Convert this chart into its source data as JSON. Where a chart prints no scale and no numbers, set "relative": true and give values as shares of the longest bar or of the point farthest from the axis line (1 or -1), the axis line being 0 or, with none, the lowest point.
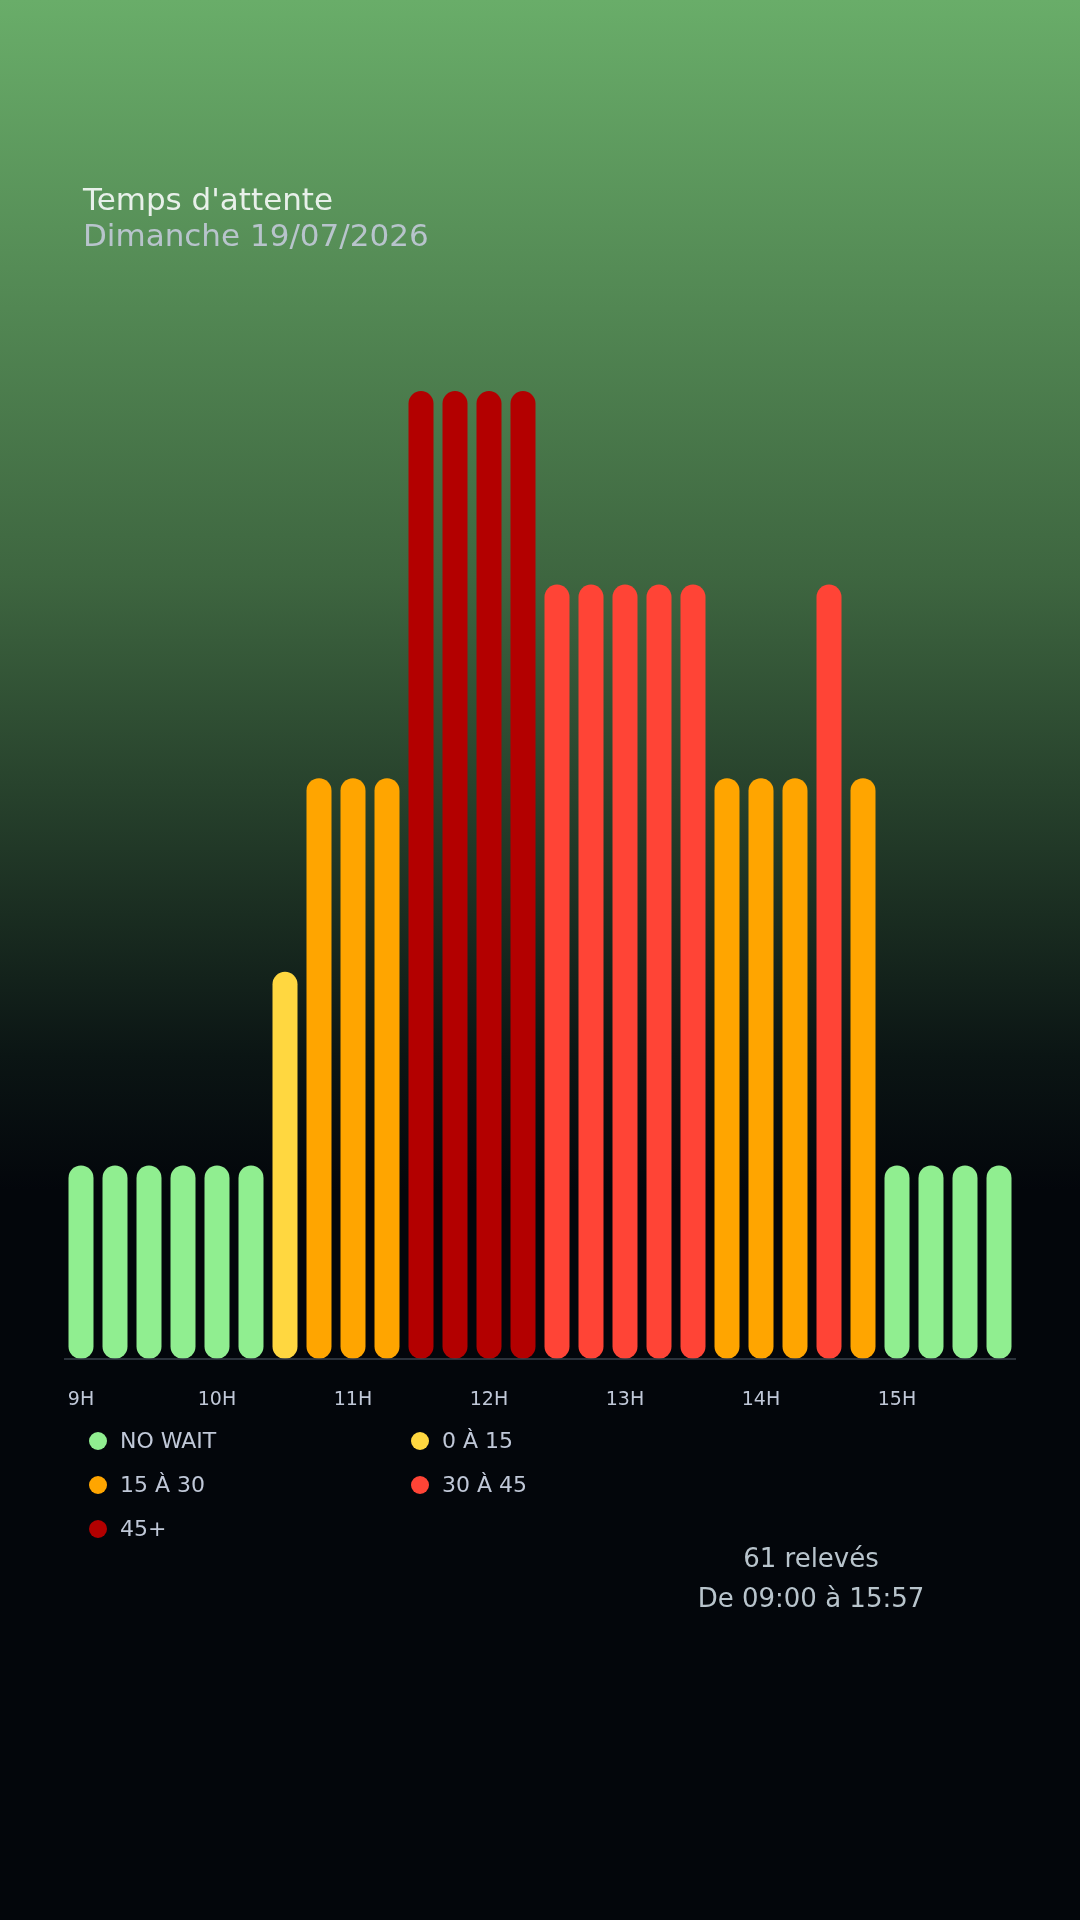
{
  "chart_data": {
    "type": "bar",
    "title": "Temps d'attente",
    "subtitle": "Dimanche 19/07/2026",
    "relative": true,
    "legend": "bottom",
    "categories": [
      "9H",
      null,
      null,
      null,
      "10H",
      null,
      null,
      null,
      "11H",
      null,
      null,
      null,
      "12H",
      null,
      null,
      null,
      "13H",
      null,
      null,
      null,
      "14H",
      null,
      null,
      null,
      "15H",
      null,
      null,
      null
    ],
    "series": [
      {
        "name": "NO WAIT",
        "color": "#90ee90",
        "values": [
          0.2,
          0.2,
          0.2,
          0.2,
          0.2,
          0.2,
          null,
          null,
          null,
          null,
          null,
          null,
          null,
          null,
          null,
          null,
          null,
          null,
          null,
          null,
          null,
          null,
          null,
          null,
          0.2,
          0.2,
          0.2,
          0.2
        ]
      },
      {
        "name": "0 À 15",
        "color": "#ffd740",
        "values": [
          null,
          null,
          null,
          null,
          null,
          null,
          0.4,
          null,
          null,
          null,
          null,
          null,
          null,
          null,
          null,
          null,
          null,
          null,
          null,
          null,
          null,
          null,
          null,
          null,
          null,
          null,
          null,
          null
        ]
      },
      {
        "name": "15 À 30",
        "color": "#ffa500",
        "values": [
          null,
          null,
          null,
          null,
          null,
          null,
          null,
          0.6,
          0.6,
          0.6,
          null,
          null,
          null,
          null,
          null,
          null,
          null,
          null,
          null,
          0.6,
          0.6,
          0.6,
          null,
          0.6,
          null,
          null,
          null,
          null
        ]
      },
      {
        "name": "30 À 45",
        "color": "#ff4436",
        "values": [
          null,
          null,
          null,
          null,
          null,
          null,
          null,
          null,
          null,
          null,
          null,
          null,
          null,
          null,
          0.8,
          0.8,
          0.8,
          0.8,
          0.8,
          null,
          null,
          null,
          0.8,
          null,
          null,
          null,
          null,
          null
        ]
      },
      {
        "name": "45+",
        "color": "#b30000",
        "values": [
          null,
          null,
          null,
          null,
          null,
          null,
          null,
          null,
          null,
          null,
          1,
          1,
          1,
          1,
          null,
          null,
          null,
          null,
          null,
          null,
          null,
          null,
          null,
          null,
          null,
          null,
          null,
          null
        ]
      }
    ],
    "annotations": [
      "61 relevés",
      "De 09:00 à 15:57"
    ]
  }
}
